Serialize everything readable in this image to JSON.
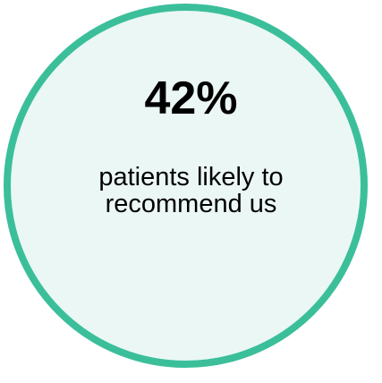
{
  "stat": {
    "value": "42%",
    "caption_lines": [
      "patients likely to",
      "recommend us"
    ]
  },
  "colors": {
    "ring": "#3bbf9a",
    "fill": "#ebf7f5",
    "text": "#000000"
  }
}
